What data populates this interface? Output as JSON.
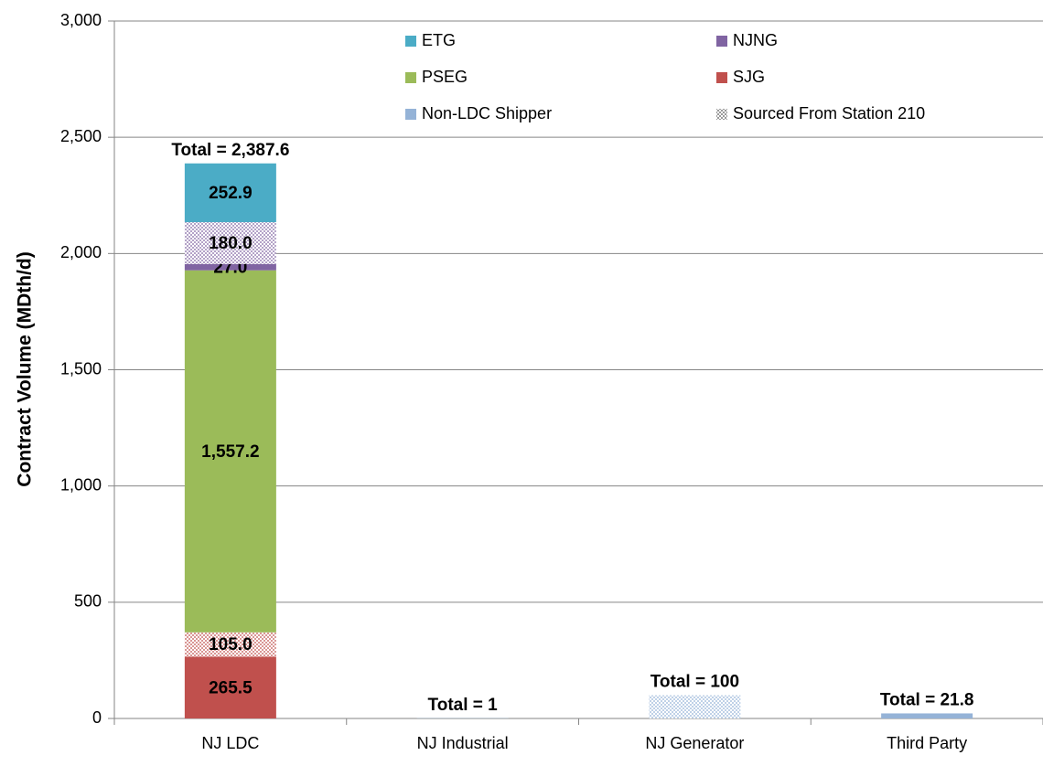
{
  "chart_data": {
    "type": "stacked_bar",
    "y_label": "Contract Volume (MDth/d)",
    "categories": [
      "NJ LDC",
      "NJ Industrial",
      "NJ Generator",
      "Third Party"
    ],
    "series": [
      {
        "name": "ETG",
        "color": "#4bacc6",
        "values": [
          252.9,
          null,
          null,
          null
        ],
        "value_labels": [
          "252.9",
          null,
          null,
          null
        ],
        "sourced_values": [
          null,
          null,
          null,
          null
        ],
        "sourced_labels": [
          null,
          null,
          null,
          null
        ]
      },
      {
        "name": "NJNG",
        "color": "#8064a2",
        "values": [
          27.0,
          null,
          null,
          null
        ],
        "value_labels": [
          "27.0",
          null,
          null,
          null
        ],
        "sourced_values": [
          180.0,
          null,
          null,
          null
        ],
        "sourced_labels": [
          "180.0",
          null,
          null,
          null
        ]
      },
      {
        "name": "PSEG",
        "color": "#9bbb59",
        "values": [
          1557.2,
          null,
          null,
          null
        ],
        "value_labels": [
          "1,557.2",
          null,
          null,
          null
        ],
        "sourced_values": [
          null,
          null,
          null,
          null
        ],
        "sourced_labels": [
          null,
          null,
          null,
          null
        ]
      },
      {
        "name": "SJG",
        "color": "#c0504d",
        "values": [
          265.5,
          null,
          null,
          null
        ],
        "value_labels": [
          "265.5",
          null,
          null,
          null
        ],
        "sourced_values": [
          105.0,
          null,
          null,
          null
        ],
        "sourced_labels": [
          "105.0",
          null,
          null,
          null
        ]
      },
      {
        "name": "Non-LDC Shipper",
        "color": "#95b3d7",
        "values": [
          null,
          1,
          null,
          21.8
        ],
        "value_labels": [
          null,
          null,
          null,
          null
        ],
        "sourced_values": [
          null,
          null,
          100,
          null
        ],
        "sourced_labels": [
          null,
          null,
          null,
          null
        ]
      }
    ],
    "sourced_legend": {
      "name": "Sourced From Station 210",
      "color": "#555555"
    },
    "totals": [
      "Total = 2,387.6",
      "Total = 1",
      "Total = 100",
      "Total = 21.8"
    ],
    "ylim": [
      0,
      3000
    ],
    "yticks": [
      0,
      500,
      {
        "value": 1000,
        "label": "1,000"
      },
      {
        "value": 1500,
        "label": "1,500"
      },
      {
        "value": 2000,
        "label": "2,000"
      },
      {
        "value": 2500,
        "label": "2,500"
      },
      {
        "value": 3000,
        "label": "3,000"
      }
    ],
    "grid": true
  }
}
